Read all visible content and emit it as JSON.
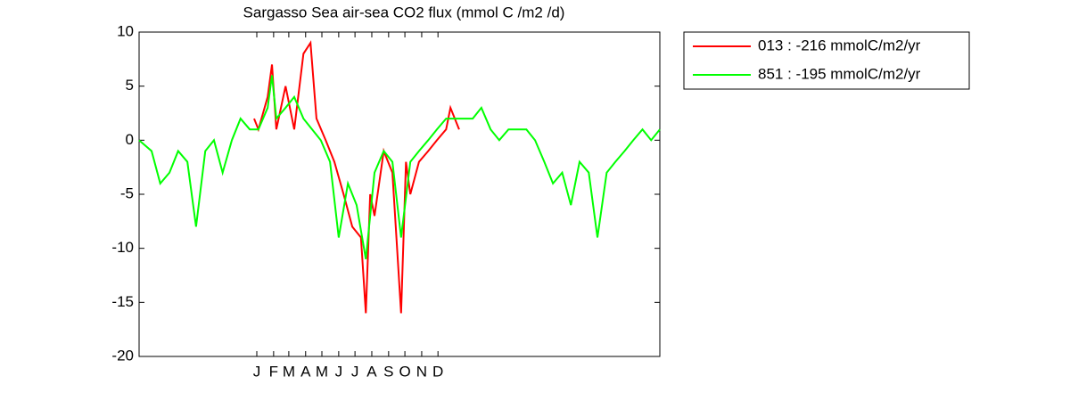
{
  "chart_data": {
    "type": "line",
    "title": "Sargasso Sea  air-sea CO2 flux (mmol C /m2 /d)",
    "xlim": [
      -217,
      743
    ],
    "xticks": [
      {
        "value": 0,
        "label": "J"
      },
      {
        "value": 31,
        "label": "F"
      },
      {
        "value": 59,
        "label": "M"
      },
      {
        "value": 90,
        "label": "A"
      },
      {
        "value": 120,
        "label": "M"
      },
      {
        "value": 151,
        "label": "J"
      },
      {
        "value": 181,
        "label": "J"
      },
      {
        "value": 212,
        "label": "A"
      },
      {
        "value": 243,
        "label": "S"
      },
      {
        "value": 273,
        "label": "O"
      },
      {
        "value": 304,
        "label": "N"
      },
      {
        "value": 334,
        "label": "D"
      }
    ],
    "ylim": [
      -20,
      10
    ],
    "yticks": [
      -20,
      -15,
      -10,
      -5,
      0,
      5,
      10
    ],
    "legend": "outside-right",
    "series": [
      {
        "name": "013 : -216 mmolC/m2/yr",
        "color": "#ff0000",
        "x": [
          -5,
          3,
          20,
          28,
          36,
          53,
          69,
          86,
          99,
          110,
          127,
          143,
          160,
          176,
          192,
          201,
          209,
          217,
          234,
          250,
          266,
          275,
          283,
          299,
          316,
          332,
          349,
          357,
          373
        ],
        "values": [
          2,
          1,
          4,
          7,
          1,
          5,
          1,
          8,
          9,
          2,
          0,
          -2,
          -5,
          -8,
          -9,
          -16,
          -5,
          -7,
          -1,
          -3,
          -16,
          -2,
          -5,
          -2,
          -1,
          0,
          1,
          3,
          1
        ]
      },
      {
        "name": "851 : -195 mmolC/m2/yr",
        "color": "#00ff00",
        "x": [
          -217,
          -194,
          -178,
          -161,
          -145,
          -128,
          -112,
          -95,
          -79,
          -63,
          -46,
          -30,
          -13,
          3,
          20,
          28,
          36,
          53,
          69,
          86,
          102,
          118,
          135,
          151,
          168,
          184,
          201,
          217,
          234,
          250,
          266,
          283,
          299,
          316,
          332,
          349,
          365,
          382,
          398,
          414,
          431,
          447,
          464,
          480,
          497,
          513,
          530,
          546,
          563,
          579,
          595,
          612,
          628,
          645,
          661,
          678,
          694,
          711,
          727,
          743
        ],
        "values": [
          0,
          -1,
          -4,
          -3,
          -1,
          -2,
          -8,
          -1,
          0,
          -3,
          0,
          2,
          1,
          1,
          3,
          6,
          2,
          3,
          4,
          2,
          1,
          0,
          -2,
          -9,
          -4,
          -6,
          -11,
          -3,
          -1,
          -2,
          -9,
          -2,
          -1,
          0,
          1,
          2,
          2,
          2,
          2,
          3,
          1,
          0,
          1,
          1,
          1,
          0,
          -2,
          -4,
          -3,
          -6,
          -2,
          -3,
          -9,
          -3,
          -2,
          -1,
          0,
          1,
          0,
          1
        ]
      }
    ]
  }
}
